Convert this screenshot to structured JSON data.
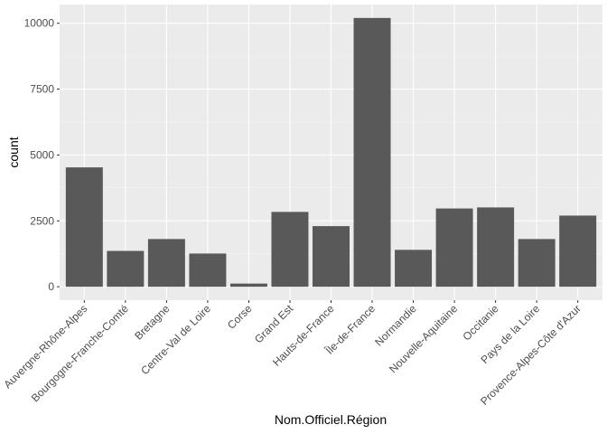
{
  "chart_data": {
    "type": "bar",
    "title": "",
    "xlabel": "Nom.Officiel.Région",
    "ylabel": "count",
    "categories": [
      "Auvergne-Rhône-Alpes",
      "Bourgogne-Franche-Comté",
      "Bretagne",
      "Centre-Val de Loire",
      "Corse",
      "Grand Est",
      "Hauts-de-France",
      "Île-de-France",
      "Normandie",
      "Nouvelle-Aquitaine",
      "Occitanie",
      "Pays de la Loire",
      "Provence-Alpes-Côte d'Azur"
    ],
    "values": [
      4530,
      1360,
      1810,
      1260,
      120,
      2840,
      2300,
      10200,
      1400,
      2970,
      3010,
      1810,
      2700
    ],
    "y_ticks": [
      0,
      2500,
      5000,
      7500,
      10000
    ],
    "y_tick_labels": [
      "0",
      "2500",
      "5000",
      "7500",
      "10000"
    ],
    "ylim": [
      -510,
      10710
    ],
    "grid": true,
    "legend": "none",
    "colors": {
      "bar": "#595959",
      "panel": "#ebebeb",
      "grid_major": "#ffffff",
      "grid_minor": "#f5f5f5"
    }
  }
}
